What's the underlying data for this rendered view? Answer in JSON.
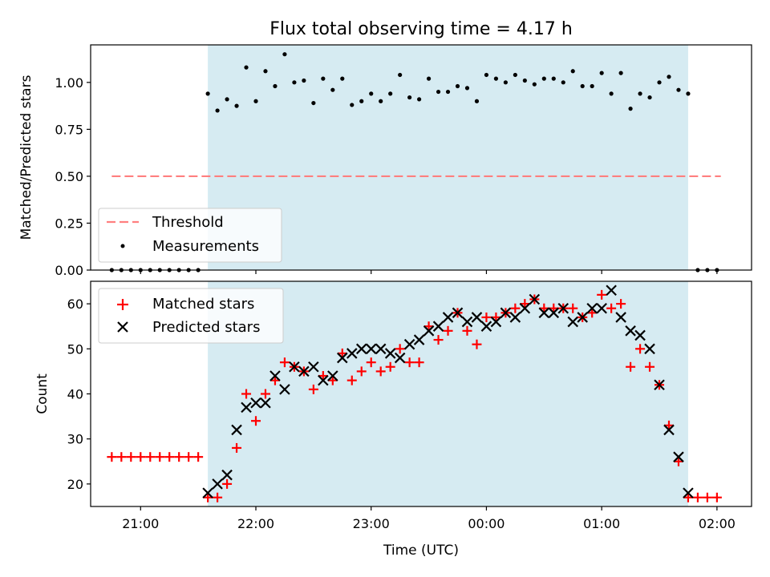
{
  "figure": {
    "title": "Flux total observing time = 4.17 h",
    "xlabel": "Time (UTC)",
    "colors": {
      "shade": "#add8e6",
      "threshold": "#ff7f7f",
      "matched": "#ff0000",
      "predicted": "#000000",
      "measurement": "#000000"
    }
  },
  "chart_data": [
    {
      "type": "scatter",
      "name": "ratio-panel",
      "ylabel": "Matched/Predicted stars",
      "ylim": [
        0,
        1.2
      ],
      "yticks": [
        "0.00",
        "0.25",
        "0.50",
        "0.75",
        "1.00"
      ],
      "xlim": [
        "20:34",
        "02:18"
      ],
      "shaded_interval": [
        "21:35",
        "01:45"
      ],
      "threshold": {
        "label": "Threshold",
        "value": 0.5,
        "x_range": [
          "20:45",
          "02:02"
        ]
      },
      "legend": {
        "placement": "lower-left",
        "entries": [
          "Threshold",
          "Measurements"
        ]
      },
      "series": [
        {
          "name": "Measurements",
          "x": [
            "20:45",
            "20:50",
            "20:55",
            "21:00",
            "21:05",
            "21:10",
            "21:15",
            "21:20",
            "21:25",
            "21:30",
            "21:35",
            "21:40",
            "21:45",
            "21:50",
            "21:55",
            "22:00",
            "22:05",
            "22:10",
            "22:15",
            "22:20",
            "22:25",
            "22:30",
            "22:35",
            "22:40",
            "22:45",
            "22:50",
            "22:55",
            "23:00",
            "23:05",
            "23:10",
            "23:15",
            "23:20",
            "23:25",
            "23:30",
            "23:35",
            "23:40",
            "23:45",
            "23:50",
            "23:55",
            "00:00",
            "00:05",
            "00:10",
            "00:15",
            "00:20",
            "00:25",
            "00:30",
            "00:35",
            "00:40",
            "00:45",
            "00:50",
            "00:55",
            "01:00",
            "01:05",
            "01:10",
            "01:15",
            "01:20",
            "01:25",
            "01:30",
            "01:35",
            "01:40",
            "01:45",
            "01:50",
            "01:55",
            "02:00"
          ],
          "y": [
            0,
            0,
            0,
            0,
            0,
            0,
            0,
            0,
            0,
            0,
            0.94,
            0.85,
            0.91,
            0.875,
            1.08,
            0.9,
            1.06,
            0.98,
            1.15,
            1.0,
            1.01,
            0.89,
            1.02,
            0.96,
            1.02,
            0.88,
            0.9,
            0.94,
            0.9,
            0.94,
            1.04,
            0.92,
            0.91,
            1.02,
            0.95,
            0.95,
            0.98,
            0.97,
            0.9,
            1.04,
            1.02,
            1.0,
            1.04,
            1.01,
            0.99,
            1.02,
            1.02,
            1.0,
            1.06,
            0.98,
            0.98,
            1.05,
            0.94,
            1.05,
            0.86,
            0.94,
            0.92,
            1.0,
            1.03,
            0.96,
            0.94,
            0,
            0,
            0
          ]
        }
      ]
    },
    {
      "type": "scatter",
      "name": "count-panel",
      "ylabel": "Count",
      "ylim": [
        15,
        65
      ],
      "yticks": [
        "20",
        "30",
        "40",
        "50",
        "60"
      ],
      "xlim": [
        "20:34",
        "02:18"
      ],
      "xticks": [
        "21:00",
        "22:00",
        "23:00",
        "00:00",
        "01:00",
        "02:00"
      ],
      "shaded_interval": [
        "21:35",
        "01:45"
      ],
      "legend": {
        "placement": "top-left",
        "entries": [
          "Matched stars",
          "Predicted stars"
        ]
      },
      "series": [
        {
          "name": "Matched stars",
          "marker": "+",
          "x": [
            "20:45",
            "20:50",
            "20:55",
            "21:00",
            "21:05",
            "21:10",
            "21:15",
            "21:20",
            "21:25",
            "21:30",
            "21:35",
            "21:40",
            "21:45",
            "21:50",
            "21:55",
            "22:00",
            "22:05",
            "22:10",
            "22:15",
            "22:20",
            "22:25",
            "22:30",
            "22:35",
            "22:40",
            "22:45",
            "22:50",
            "22:55",
            "23:00",
            "23:05",
            "23:10",
            "23:15",
            "23:20",
            "23:25",
            "23:30",
            "23:35",
            "23:40",
            "23:45",
            "23:50",
            "23:55",
            "00:00",
            "00:05",
            "00:10",
            "00:15",
            "00:20",
            "00:25",
            "00:30",
            "00:35",
            "00:40",
            "00:45",
            "00:50",
            "00:55",
            "01:00",
            "01:05",
            "01:10",
            "01:15",
            "01:20",
            "01:25",
            "01:30",
            "01:35",
            "01:40",
            "01:45",
            "01:50",
            "01:55",
            "02:00"
          ],
          "y": [
            26,
            26,
            26,
            26,
            26,
            26,
            26,
            26,
            26,
            26,
            17,
            17,
            20,
            28,
            40,
            34,
            40,
            43,
            47,
            46,
            45,
            41,
            44,
            43,
            49,
            43,
            45,
            47,
            45,
            46,
            50,
            47,
            47,
            55,
            52,
            54,
            58,
            54,
            51,
            57,
            57,
            58,
            59,
            60,
            61,
            59,
            59,
            59,
            59,
            57,
            58,
            62,
            59,
            60,
            46,
            50,
            46,
            42,
            33,
            25,
            17,
            17,
            17,
            17
          ]
        },
        {
          "name": "Predicted stars",
          "marker": "x",
          "x": [
            "21:35",
            "21:40",
            "21:45",
            "21:50",
            "21:55",
            "22:00",
            "22:05",
            "22:10",
            "22:15",
            "22:20",
            "22:25",
            "22:30",
            "22:35",
            "22:40",
            "22:45",
            "22:50",
            "22:55",
            "23:00",
            "23:05",
            "23:10",
            "23:15",
            "23:20",
            "23:25",
            "23:30",
            "23:35",
            "23:40",
            "23:45",
            "23:50",
            "23:55",
            "00:00",
            "00:05",
            "00:10",
            "00:15",
            "00:20",
            "00:25",
            "00:30",
            "00:35",
            "00:40",
            "00:45",
            "00:50",
            "00:55",
            "01:00",
            "01:05",
            "01:10",
            "01:15",
            "01:20",
            "01:25",
            "01:30",
            "01:35",
            "01:40",
            "01:45"
          ],
          "y": [
            18,
            20,
            22,
            32,
            37,
            38,
            38,
            44,
            41,
            46,
            45,
            46,
            43,
            44,
            48,
            49,
            50,
            50,
            50,
            49,
            48,
            51,
            52,
            54,
            55,
            57,
            58,
            56,
            57,
            55,
            56,
            58,
            57,
            59,
            61,
            58,
            58,
            59,
            56,
            57,
            59,
            59,
            63,
            57,
            54,
            53,
            50,
            42,
            32,
            26,
            18
          ]
        }
      ]
    }
  ]
}
